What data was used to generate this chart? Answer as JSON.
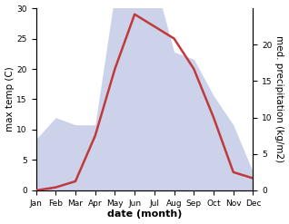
{
  "months": [
    "Jan",
    "Feb",
    "Mar",
    "Apr",
    "May",
    "Jun",
    "Jul",
    "Aug",
    "Sep",
    "Oct",
    "Nov",
    "Dec"
  ],
  "temperature": [
    0,
    0.5,
    1.5,
    9,
    20,
    29,
    27,
    25,
    20,
    12,
    3,
    2
  ],
  "precipitation": [
    7,
    10,
    9,
    9,
    27,
    28,
    29,
    19,
    18,
    13,
    9,
    2.5
  ],
  "temp_color": "#c0393b",
  "precip_fill_color": "#c5cbe8",
  "precip_fill_alpha": 0.85,
  "temp_ylim": [
    0,
    30
  ],
  "precip_ylim": [
    0,
    25
  ],
  "right_ticks": [
    0,
    5,
    10,
    15,
    20
  ],
  "left_ticks": [
    0,
    5,
    10,
    15,
    20,
    25,
    30
  ],
  "xlabel": "date (month)",
  "ylabel_left": "max temp (C)",
  "ylabel_right": "med. precipitation (kg/m2)",
  "background_color": "#ffffff",
  "axis_label_fontsize": 7.5,
  "tick_fontsize": 6.5
}
